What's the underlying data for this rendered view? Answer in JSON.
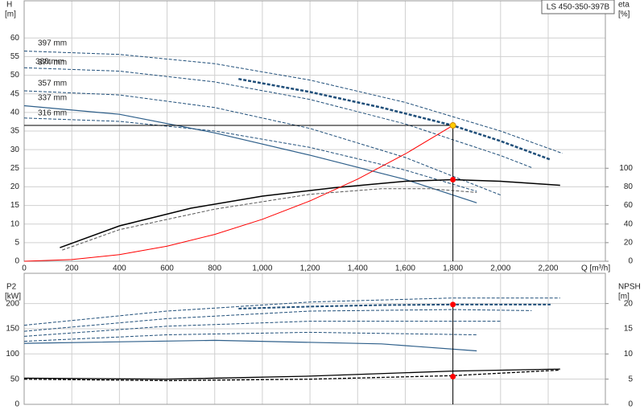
{
  "chart_data": [
    {
      "type": "line",
      "title": "LS 450-350-397B",
      "x_label": "Q [m³/h]",
      "y_label": "H",
      "y_unit": "[m]",
      "y2_label": "eta",
      "y2_unit": "[%]",
      "xlim": [
        0,
        2440
      ],
      "xticks": [
        0,
        200,
        400,
        600,
        800,
        {
          "value": 1000,
          "label": "1,000"
        },
        {
          "value": 1200,
          "label": "1,200"
        },
        {
          "value": 1400,
          "label": "1,400"
        },
        {
          "value": 1600,
          "label": "1,600"
        },
        {
          "value": 1800,
          "label": "1,800"
        },
        {
          "value": 2000,
          "label": "2,000"
        },
        {
          "value": 2200,
          "label": "2,200"
        }
      ],
      "ylim": [
        0,
        70
      ],
      "yticks": [
        0,
        5,
        10,
        15,
        20,
        25,
        30,
        35,
        40,
        45,
        50,
        55,
        60
      ],
      "y2lim": [
        0,
        280
      ],
      "y2ticks": [
        0,
        20,
        40,
        60,
        80,
        100
      ],
      "grid": true,
      "series": [
        {
          "name": "397 mm",
          "color": "#1f4e79",
          "dashed": true,
          "width": 1,
          "x": [
            0,
            400,
            800,
            1200,
            1600,
            2000,
            2260
          ],
          "values": [
            56.5,
            55.6,
            53.1,
            48.7,
            42.7,
            35.0,
            29.0
          ]
        },
        {
          "name": "388 mm",
          "color": "#1f4e79",
          "dashed": true,
          "width": 2.5,
          "x": [
            900,
            1200,
            1500,
            1800,
            2000,
            2210
          ],
          "values": [
            49,
            45.5,
            41.3,
            36.5,
            32.3,
            27.3
          ]
        },
        {
          "name": "374 mm",
          "color": "#1f4e79",
          "dashed": true,
          "width": 1,
          "x": [
            0,
            400,
            800,
            1200,
            1600,
            2000,
            2130
          ],
          "values": [
            52,
            51.1,
            48.2,
            43.5,
            36.9,
            28.4,
            25.2
          ]
        },
        {
          "name": "357 mm",
          "color": "#1f4e79",
          "dashed": true,
          "width": 1,
          "x": [
            0,
            400,
            800,
            1200,
            1600,
            2000
          ],
          "values": [
            45.8,
            44.7,
            41.3,
            35.7,
            27.9,
            17.8
          ]
        },
        {
          "name": "337 mm",
          "color": "#2e5f8a",
          "dashed": false,
          "width": 1.2,
          "x": [
            0,
            400,
            800,
            1200,
            1600,
            1900
          ],
          "values": [
            41.8,
            39.5,
            34.5,
            28.5,
            22,
            15.7
          ]
        },
        {
          "name": "316 mm",
          "color": "#1f4e79",
          "dashed": true,
          "width": 1,
          "x": [
            0,
            400,
            800,
            1200,
            1600,
            1900
          ],
          "values": [
            38.5,
            37.6,
            35,
            30.6,
            24.5,
            18.8
          ]
        },
        {
          "color": "#000000",
          "dashed": false,
          "width": 1.5,
          "axis": "y2",
          "x": [
            150,
            400,
            700,
            1000,
            1300,
            1600,
            1800,
            2000,
            2250
          ],
          "values": [
            14.6,
            38,
            57,
            70,
            79,
            86,
            87.7,
            86,
            81.7
          ]
        },
        {
          "color": "#555555",
          "dashed": true,
          "width": 1,
          "axis": "y2",
          "x": [
            160,
            400,
            800,
            1200,
            1500,
            1700,
            1900
          ],
          "values": [
            12,
            34,
            56,
            72,
            78,
            78,
            74
          ]
        },
        {
          "color": "#ff0000",
          "dashed": false,
          "width": 1,
          "x": [
            0,
            200,
            400,
            600,
            800,
            1000,
            1200,
            1400,
            1600,
            1800
          ],
          "values": [
            0,
            0.45,
            1.8,
            4.06,
            7.21,
            11.27,
            16.22,
            22.08,
            28.84,
            36.5
          ]
        }
      ],
      "points": [
        {
          "x": 1800,
          "y": 36.5,
          "color": "#ffcc00"
        },
        {
          "x": 1800,
          "y": 87.7,
          "color": "#ff0000",
          "axis": "y2"
        }
      ]
    },
    {
      "type": "line",
      "y_label": "P2",
      "y_unit": "[kW]",
      "y2_label": "NPSH",
      "y2_unit": "[m]",
      "xlim": [
        0,
        2440
      ],
      "xticks": [
        0,
        200,
        400,
        600,
        800,
        1000,
        1200,
        1400,
        1600,
        1800,
        2000,
        2200
      ],
      "ylim": [
        0,
        260
      ],
      "yticks": [
        0,
        50,
        100,
        150,
        200
      ],
      "y2lim": [
        0,
        26
      ],
      "y2ticks": [
        0,
        5,
        10,
        15,
        20
      ],
      "grid": true,
      "series": [
        {
          "color": "#1f4e79",
          "dashed": true,
          "width": 1,
          "x": [
            0,
            600,
            1200,
            1800,
            2250
          ],
          "values": [
            157,
            185,
            203,
            211,
            211
          ]
        },
        {
          "color": "#1f4e79",
          "dashed": true,
          "width": 2,
          "x": [
            900,
            1200,
            1500,
            1800,
            2210
          ],
          "values": [
            190,
            194,
            197,
            198,
            198
          ]
        },
        {
          "color": "#1f4e79",
          "dashed": true,
          "width": 1,
          "x": [
            0,
            600,
            1200,
            1800,
            2130
          ],
          "values": [
            145,
            170,
            185,
            188,
            186
          ]
        },
        {
          "color": "#1f4e79",
          "dashed": true,
          "width": 1,
          "x": [
            0,
            600,
            1200,
            2000
          ],
          "values": [
            135,
            155,
            165,
            165
          ]
        },
        {
          "color": "#1f4e79",
          "dashed": true,
          "width": 1,
          "x": [
            0,
            600,
            1200,
            1900
          ],
          "values": [
            125,
            138,
            143,
            138
          ]
        },
        {
          "color": "#2e5f8a",
          "dashed": false,
          "width": 1.2,
          "x": [
            0,
            800,
            1500,
            1900
          ],
          "values": [
            121,
            127,
            120,
            106
          ]
        },
        {
          "color": "#000000",
          "dashed": false,
          "width": 1.3,
          "axis": "y2",
          "x": [
            0,
            600,
            1200,
            1800,
            2250
          ],
          "values": [
            5.2,
            5,
            5.6,
            6.6,
            7
          ]
        },
        {
          "color": "#000000",
          "dashed": true,
          "width": 1.3,
          "axis": "y2",
          "x": [
            0,
            600,
            1200,
            1800,
            2250
          ],
          "values": [
            5,
            4.7,
            5,
            5.7,
            6.8
          ]
        }
      ],
      "points": [
        {
          "x": 1800,
          "y": 198,
          "color": "#ff0000"
        },
        {
          "x": 1800,
          "y": 5.5,
          "color": "#ff0000",
          "axis": "y2"
        }
      ]
    }
  ]
}
